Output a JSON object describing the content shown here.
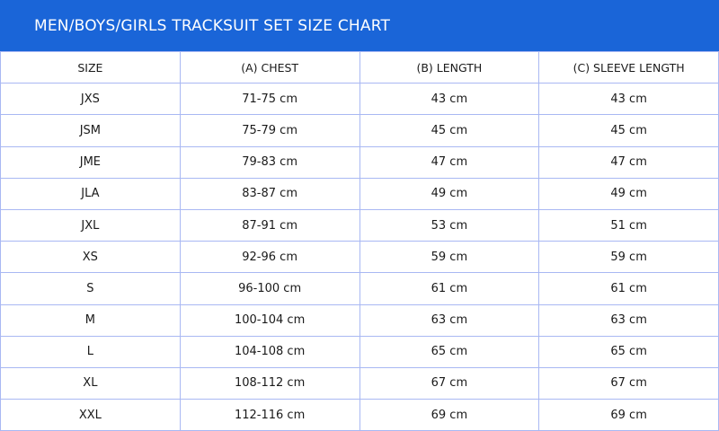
{
  "title": "MEN/BOYS/GIRLS TRACKSUIT SET SIZE CHART",
  "colors": {
    "header_bg": "#1a65d8",
    "grid": "#a9b8f3"
  },
  "columns": [
    "SIZE",
    "(A) CHEST",
    "(B) LENGTH",
    "(C) SLEEVE LENGTH"
  ],
  "rows": [
    [
      "JXS",
      "71-75 cm",
      "43 cm",
      "43 cm"
    ],
    [
      "JSM",
      "75-79 cm",
      "45 cm",
      "45 cm"
    ],
    [
      "JME",
      "79-83 cm",
      "47 cm",
      "47 cm"
    ],
    [
      "JLA",
      "83-87 cm",
      "49 cm",
      "49 cm"
    ],
    [
      "JXL",
      "87-91 cm",
      "53 cm",
      "51 cm"
    ],
    [
      "XS",
      "92-96 cm",
      "59 cm",
      "59 cm"
    ],
    [
      "S",
      "96-100 cm",
      "61 cm",
      "61 cm"
    ],
    [
      "M",
      "100-104 cm",
      "63 cm",
      "63 cm"
    ],
    [
      "L",
      "104-108 cm",
      "65 cm",
      "65 cm"
    ],
    [
      "XL",
      "108-112 cm",
      "67 cm",
      "67 cm"
    ],
    [
      "XXL",
      "112-116 cm",
      "69 cm",
      "69 cm"
    ]
  ]
}
